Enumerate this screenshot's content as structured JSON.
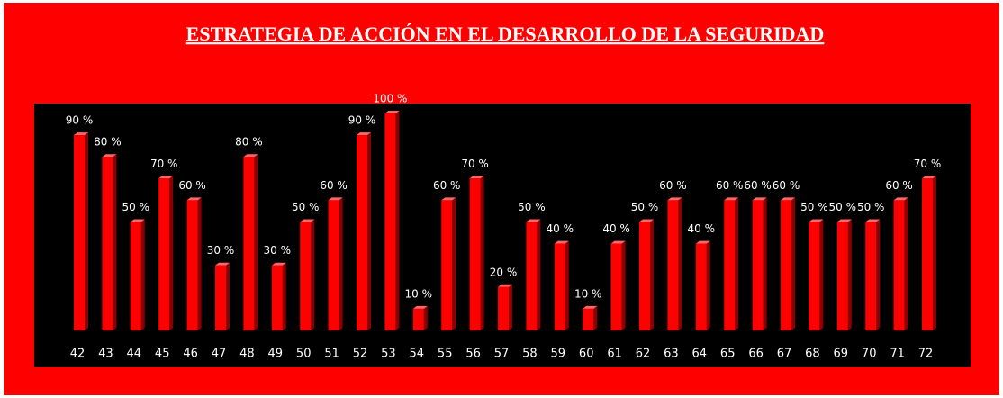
{
  "chart_data": {
    "type": "bar",
    "title": "ESTRATEGIA DE ACCIÓN EN EL DESARROLLO DE LA SEGURIDAD",
    "categories": [
      "42",
      "43",
      "44",
      "45",
      "46",
      "47",
      "48",
      "49",
      "50",
      "51",
      "52",
      "53",
      "54",
      "55",
      "56",
      "57",
      "58",
      "59",
      "60",
      "61",
      "62",
      "63",
      "64",
      "65",
      "66",
      "67",
      "68",
      "69",
      "70",
      "71",
      "72"
    ],
    "values": [
      90,
      80,
      50,
      70,
      60,
      30,
      80,
      30,
      50,
      60,
      90,
      100,
      10,
      60,
      70,
      20,
      50,
      40,
      10,
      40,
      50,
      60,
      40,
      60,
      60,
      60,
      50,
      50,
      50,
      60,
      70
    ],
    "value_labels": [
      "90 %",
      "80 %",
      "50 %",
      "70 %",
      "60 %",
      "30 %",
      "80 %",
      "30 %",
      "50 %",
      "60 %",
      "90 %",
      "100 %",
      "10 %",
      "60 %",
      "70 %",
      "20 %",
      "50 %",
      "40 %",
      "10 %",
      "40 %",
      "50 %",
      "60 %",
      "40 %",
      "60 %",
      "60 %",
      "60 %",
      "50 %",
      "50 %",
      "50 %",
      "60 %",
      "70 %"
    ],
    "color": "#ff0000"
  }
}
